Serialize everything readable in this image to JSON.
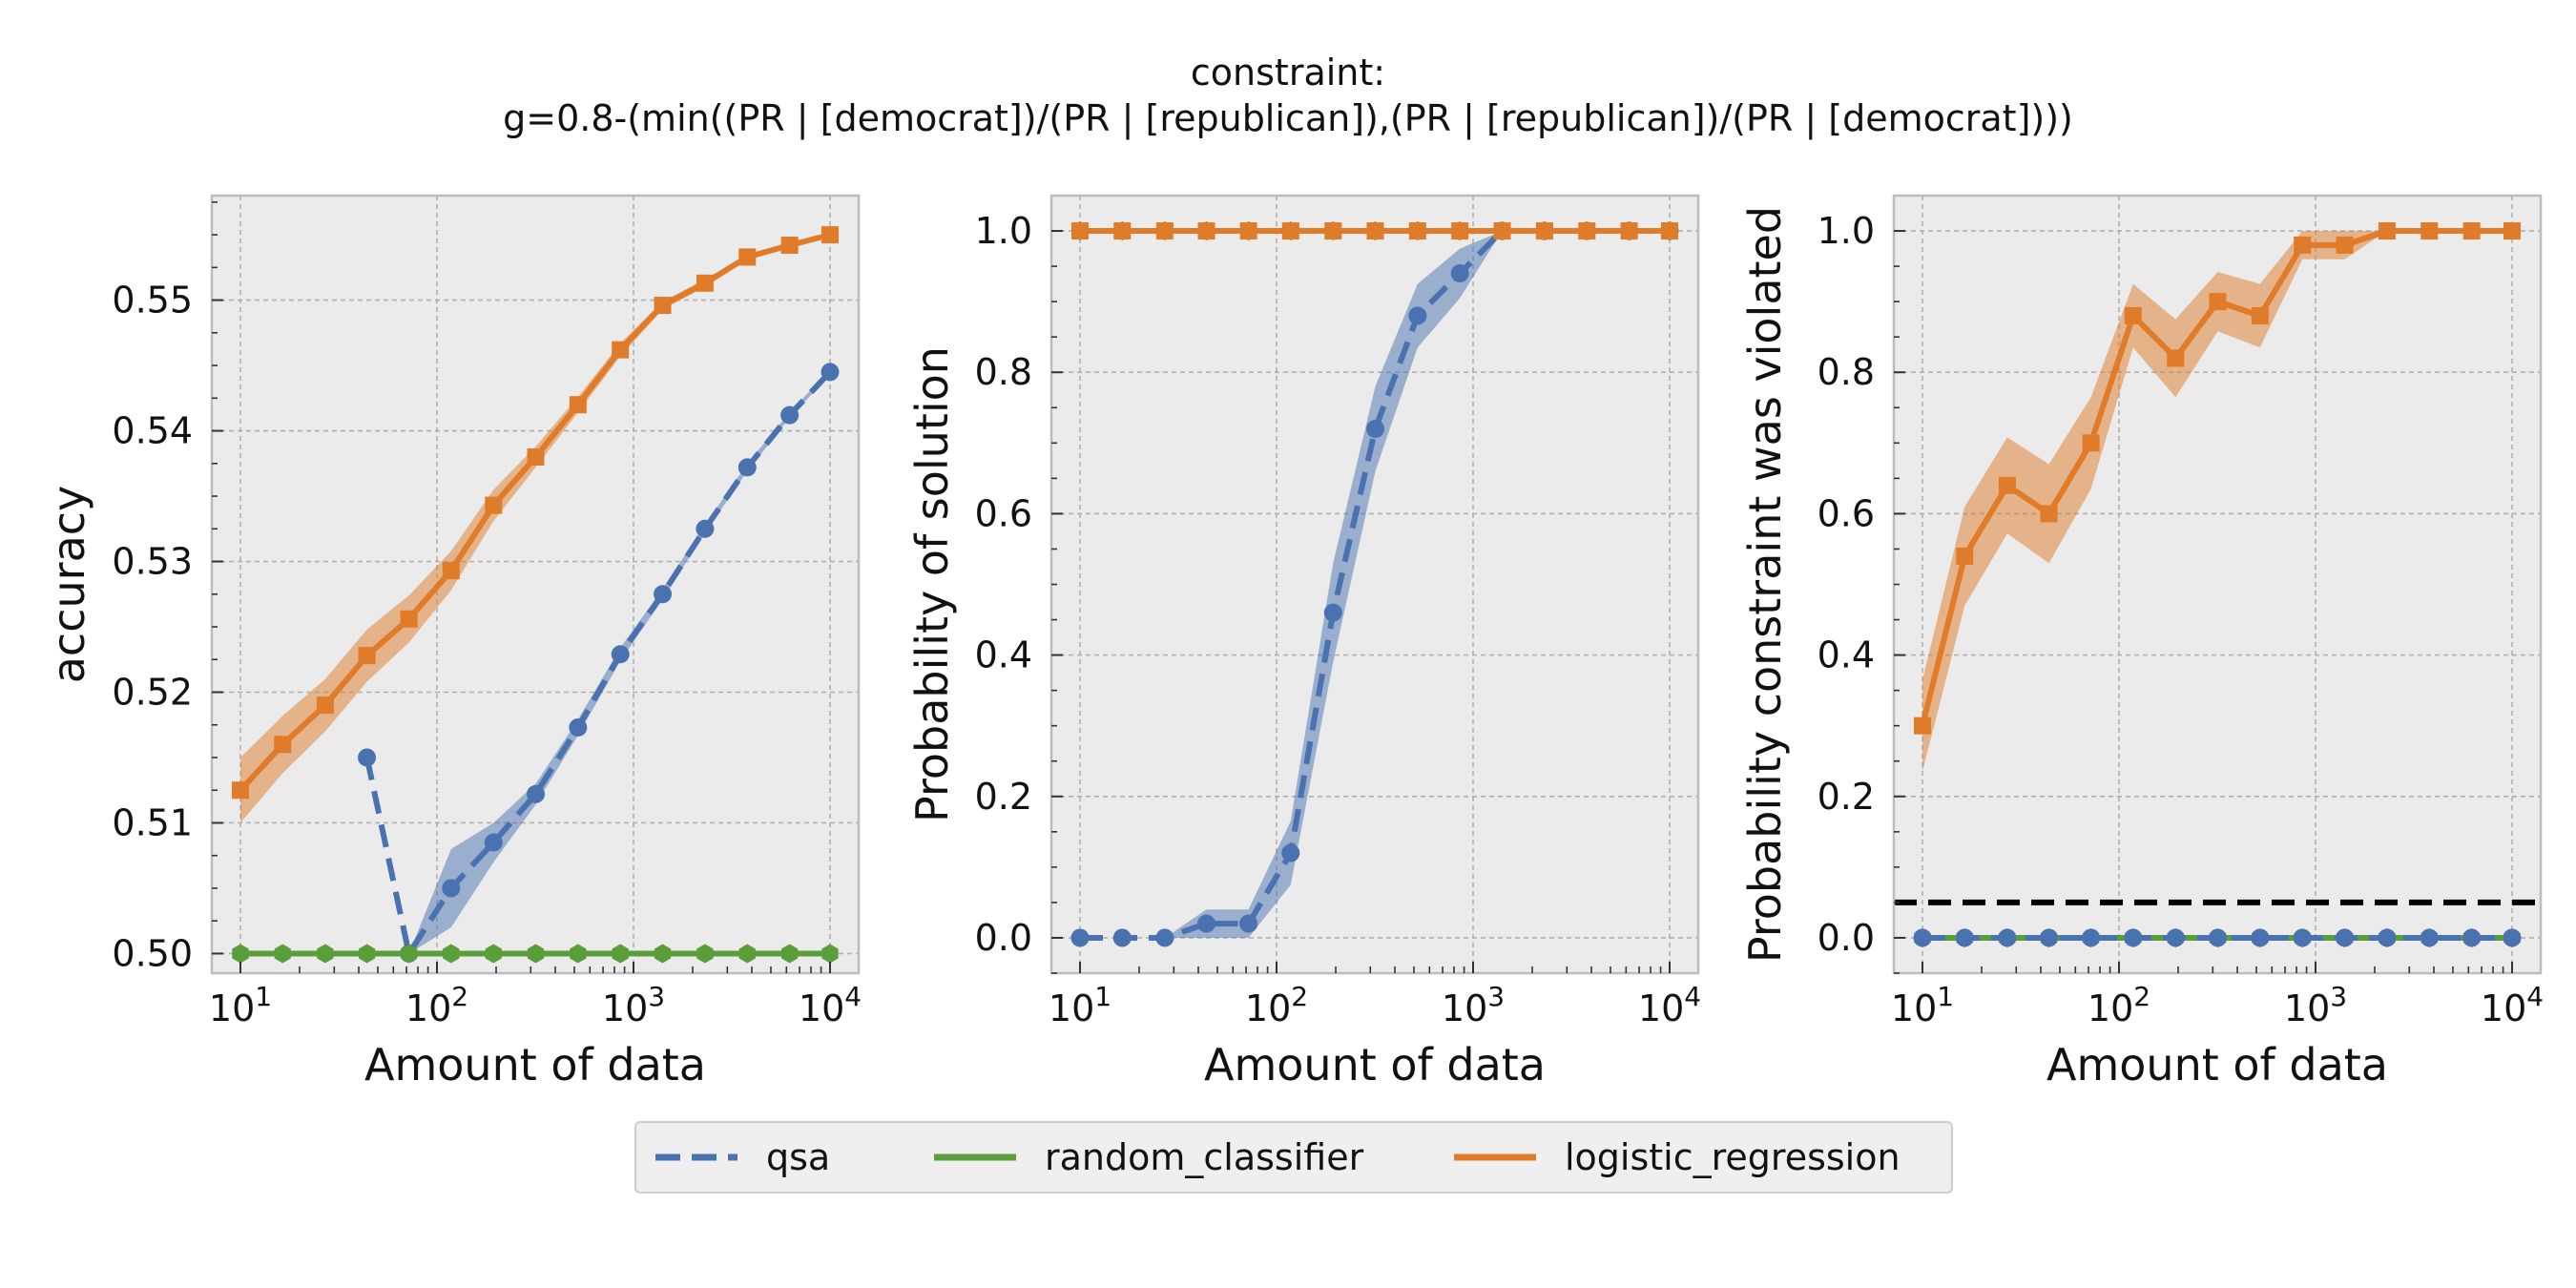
{
  "figure": {
    "title_line1": "constraint:",
    "title_line2": "g=0.8-(min((PR | [democrat])/(PR | [republican]),(PR | [republican])/(PR | [democrat])))"
  },
  "colors": {
    "qsa": "#4a72b0",
    "random_classifier": "#5a9e3a",
    "logistic_regression": "#e07b2a",
    "panel_bg": "#ebebeb",
    "grid": "#b0b0b0",
    "threshold": "#000000"
  },
  "legend": [
    {
      "key": "qsa",
      "label": "qsa",
      "style": "dashed"
    },
    {
      "key": "random_classifier",
      "label": "random_classifier",
      "style": "solid"
    },
    {
      "key": "logistic_regression",
      "label": "logistic_regression",
      "style": "solid"
    }
  ],
  "chart_data": [
    {
      "type": "line",
      "title": "",
      "xlabel": "Amount of data",
      "ylabel": "accuracy",
      "xscale": "log",
      "xlim": [
        10,
        10000
      ],
      "ylim": [
        0.4985,
        0.558
      ],
      "yticks": [
        0.5,
        0.51,
        0.52,
        0.53,
        0.54,
        0.55
      ],
      "ytick_labels": [
        "0.50",
        "0.51",
        "0.52",
        "0.53",
        "0.54",
        "0.55"
      ],
      "grid": true,
      "series": [
        {
          "name": "logistic_regression",
          "marker": "square",
          "dash": "solid",
          "x": [
            10,
            16.4,
            27,
            44,
            72,
            118,
            194,
            318,
            522,
            857,
            1407,
            2310,
            3793,
            6228,
            10000
          ],
          "y": [
            0.5125,
            0.516,
            0.519,
            0.5228,
            0.5256,
            0.5293,
            0.5343,
            0.538,
            0.542,
            0.5462,
            0.5496,
            0.5513,
            0.5533,
            0.5542,
            0.555
          ],
          "band": [
            0.0025,
            0.0022,
            0.002,
            0.002,
            0.0018,
            0.0015,
            0.0012,
            0.0008,
            0.0006,
            0.0005,
            0.0003,
            0.0003,
            0.0002,
            0.0002,
            0.0002
          ]
        },
        {
          "name": "qsa",
          "marker": "circle",
          "dash": "dashed",
          "x": [
            44,
            72,
            118,
            194,
            318,
            522,
            857,
            1407,
            2310,
            3793,
            6228,
            10000
          ],
          "y": [
            0.515,
            0.5,
            0.505,
            0.5085,
            0.5122,
            0.5173,
            0.5229,
            0.5275,
            0.5325,
            0.5372,
            0.5412,
            0.5445
          ],
          "band": [
            0,
            0,
            0.003,
            0.0015,
            0.0008,
            0.0006,
            0.0005,
            0.0004,
            0.0003,
            0.0003,
            0.0002,
            0.0002
          ]
        },
        {
          "name": "random_classifier",
          "marker": "hexagon",
          "dash": "solid",
          "x": [
            10,
            16.4,
            27,
            44,
            72,
            118,
            194,
            318,
            522,
            857,
            1407,
            2310,
            3793,
            6228,
            10000
          ],
          "y": [
            0.5,
            0.5,
            0.5,
            0.5,
            0.5,
            0.5,
            0.5,
            0.5,
            0.5,
            0.5,
            0.5,
            0.5,
            0.5,
            0.5,
            0.5
          ],
          "band": [
            0,
            0,
            0,
            0,
            0,
            0,
            0,
            0,
            0,
            0,
            0,
            0,
            0,
            0,
            0
          ]
        }
      ]
    },
    {
      "type": "line",
      "title": "",
      "xlabel": "Amount of data",
      "ylabel": "Probability of solution",
      "xscale": "log",
      "xlim": [
        10,
        10000
      ],
      "ylim": [
        -0.05,
        1.05
      ],
      "yticks": [
        0.0,
        0.2,
        0.4,
        0.6,
        0.8,
        1.0
      ],
      "ytick_labels": [
        "0.0",
        "0.2",
        "0.4",
        "0.6",
        "0.8",
        "1.0"
      ],
      "grid": true,
      "series": [
        {
          "name": "qsa",
          "marker": "circle",
          "dash": "dashed",
          "x": [
            10,
            16.4,
            27,
            44,
            72,
            118,
            194,
            318,
            522,
            857,
            1407,
            2310,
            3793,
            6228,
            10000
          ],
          "y": [
            0,
            0,
            0,
            0.02,
            0.02,
            0.12,
            0.46,
            0.72,
            0.88,
            0.94,
            1.0,
            1.0,
            1.0,
            1.0,
            1.0
          ],
          "band": [
            0,
            0,
            0,
            0.02,
            0.02,
            0.045,
            0.07,
            0.06,
            0.045,
            0.035,
            0,
            0,
            0,
            0,
            0
          ]
        },
        {
          "name": "random_classifier",
          "marker": "hexagon",
          "dash": "solid",
          "x": [
            10,
            16.4,
            27,
            44,
            72,
            118,
            194,
            318,
            522,
            857,
            1407,
            2310,
            3793,
            6228,
            10000
          ],
          "y": [
            1,
            1,
            1,
            1,
            1,
            1,
            1,
            1,
            1,
            1,
            1,
            1,
            1,
            1,
            1
          ],
          "band": [
            0,
            0,
            0,
            0,
            0,
            0,
            0,
            0,
            0,
            0,
            0,
            0,
            0,
            0,
            0
          ]
        },
        {
          "name": "logistic_regression",
          "marker": "square",
          "dash": "solid",
          "x": [
            10,
            16.4,
            27,
            44,
            72,
            118,
            194,
            318,
            522,
            857,
            1407,
            2310,
            3793,
            6228,
            10000
          ],
          "y": [
            1,
            1,
            1,
            1,
            1,
            1,
            1,
            1,
            1,
            1,
            1,
            1,
            1,
            1,
            1
          ],
          "band": [
            0,
            0,
            0,
            0,
            0,
            0,
            0,
            0,
            0,
            0,
            0,
            0,
            0,
            0,
            0
          ]
        }
      ]
    },
    {
      "type": "line",
      "title": "",
      "xlabel": "Amount of data",
      "ylabel": "Probability constraint was violated",
      "xscale": "log",
      "xlim": [
        10,
        10000
      ],
      "ylim": [
        -0.05,
        1.05
      ],
      "yticks": [
        0.0,
        0.2,
        0.4,
        0.6,
        0.8,
        1.0
      ],
      "ytick_labels": [
        "0.0",
        "0.2",
        "0.4",
        "0.6",
        "0.8",
        "1.0"
      ],
      "grid": true,
      "threshold": 0.05,
      "series": [
        {
          "name": "logistic_regression",
          "marker": "square",
          "dash": "solid",
          "x": [
            10,
            16.4,
            27,
            44,
            72,
            118,
            194,
            318,
            522,
            857,
            1407,
            2310,
            3793,
            6228,
            10000
          ],
          "y": [
            0.3,
            0.54,
            0.64,
            0.6,
            0.7,
            0.88,
            0.82,
            0.9,
            0.88,
            0.98,
            0.98,
            1.0,
            1.0,
            1.0,
            1.0
          ],
          "band": [
            0.065,
            0.07,
            0.068,
            0.07,
            0.065,
            0.045,
            0.055,
            0.042,
            0.045,
            0.02,
            0.02,
            0,
            0,
            0,
            0
          ]
        },
        {
          "name": "random_classifier",
          "marker": "hexagon",
          "dash": "solid",
          "x": [
            10,
            16.4,
            27,
            44,
            72,
            118,
            194,
            318,
            522,
            857,
            1407,
            2310,
            3793,
            6228,
            10000
          ],
          "y": [
            0,
            0,
            0,
            0,
            0,
            0,
            0,
            0,
            0,
            0,
            0,
            0,
            0,
            0,
            0
          ],
          "band": [
            0,
            0,
            0,
            0,
            0,
            0,
            0,
            0,
            0,
            0,
            0,
            0,
            0,
            0,
            0
          ]
        },
        {
          "name": "qsa",
          "marker": "circle",
          "dash": "dashed",
          "x": [
            10,
            16.4,
            27,
            44,
            72,
            118,
            194,
            318,
            522,
            857,
            1407,
            2310,
            3793,
            6228,
            10000
          ],
          "y": [
            0,
            0,
            0,
            0,
            0,
            0,
            0,
            0,
            0,
            0,
            0,
            0,
            0,
            0,
            0
          ],
          "band": [
            0,
            0,
            0,
            0,
            0,
            0,
            0,
            0,
            0,
            0,
            0,
            0,
            0,
            0,
            0
          ]
        }
      ]
    }
  ]
}
